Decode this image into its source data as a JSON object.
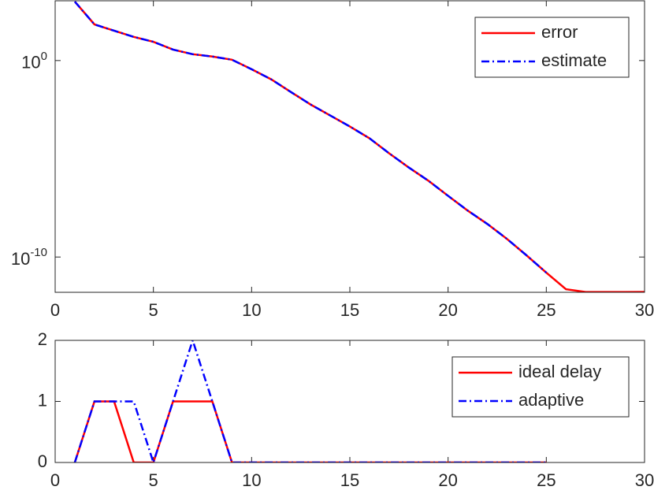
{
  "chart_data": [
    {
      "type": "line",
      "log_y": true,
      "xlim": [
        0,
        30
      ],
      "xticks": [
        0,
        5,
        10,
        15,
        20,
        25,
        30
      ],
      "ylim": [
        1.6e-12,
        1100
      ],
      "yticks": [
        {
          "value": 1e-10,
          "label": "10^-10"
        },
        {
          "value": 1,
          "label": "10^0"
        }
      ],
      "legend": "upper right",
      "series": [
        {
          "name": "error",
          "color": "#ff0000",
          "style": "solid",
          "x": [
            1,
            2,
            3,
            4,
            5,
            6,
            7,
            8,
            9,
            10,
            11,
            12,
            13,
            14,
            15,
            16,
            17,
            18,
            19,
            20,
            21,
            22,
            23,
            24,
            25,
            26,
            27,
            28,
            29,
            30
          ],
          "values": [
            1000,
            69,
            33,
            16,
            9,
            3.6,
            2.1,
            1.6,
            1.1,
            0.36,
            0.11,
            0.025,
            0.0058,
            0.0016,
            0.00044,
            0.00011,
            1.9e-05,
            3.6e-06,
            7.6e-07,
            1.3e-07,
            2.3e-08,
            4.8e-09,
            8.3e-10,
            1.2e-10,
            1.6e-11,
            2.3e-12,
            1.65e-12,
            1.65e-12,
            1.65e-12,
            1.67e-12
          ]
        },
        {
          "name": "estimate",
          "color": "#0000ff",
          "style": "dashdot",
          "x": [
            1,
            2,
            3,
            4,
            5,
            6,
            7,
            8,
            9,
            10,
            11,
            12,
            13,
            14,
            15,
            16,
            17,
            18,
            19,
            20,
            21,
            22,
            23,
            24,
            25
          ],
          "values": [
            1000,
            69,
            33,
            16,
            9,
            3.6,
            2.1,
            1.6,
            1.1,
            0.36,
            0.11,
            0.025,
            0.0058,
            0.0016,
            0.00044,
            0.00011,
            1.9e-05,
            3.6e-06,
            7.6e-07,
            1.3e-07,
            2.3e-08,
            4.8e-09,
            8.3e-10,
            1.2e-10,
            1.6e-11
          ]
        }
      ]
    },
    {
      "type": "line",
      "xlim": [
        0,
        30
      ],
      "xticks": [
        0,
        5,
        10,
        15,
        20,
        25,
        30
      ],
      "ylim": [
        0,
        2
      ],
      "yticks": [
        0,
        1,
        2
      ],
      "legend": "upper right",
      "series": [
        {
          "name": "ideal delay",
          "color": "#ff0000",
          "style": "solid",
          "x": [
            1,
            2,
            3,
            4,
            5,
            6,
            7,
            8,
            9,
            10,
            11,
            12,
            13,
            14,
            15,
            16,
            17,
            18,
            19,
            20,
            21,
            22,
            23,
            24,
            25
          ],
          "values": [
            0,
            1,
            1,
            0,
            0,
            1,
            1,
            1,
            0,
            0,
            0,
            0,
            0,
            0,
            0,
            0,
            0,
            0,
            0,
            0,
            0,
            0,
            0,
            0,
            0
          ]
        },
        {
          "name": "adaptive",
          "color": "#0000ff",
          "style": "dashdot",
          "x": [
            1,
            2,
            3,
            4,
            5,
            6,
            7,
            8,
            9,
            10,
            11,
            12,
            13,
            14,
            15,
            16,
            17,
            18,
            19,
            20,
            21,
            22,
            23,
            24,
            25
          ],
          "values": [
            0,
            1,
            1,
            1,
            0,
            1,
            2,
            1,
            0,
            0,
            0,
            0,
            0,
            0,
            0,
            0,
            0,
            0,
            0,
            0,
            0,
            0,
            0,
            0,
            0
          ]
        }
      ]
    }
  ]
}
